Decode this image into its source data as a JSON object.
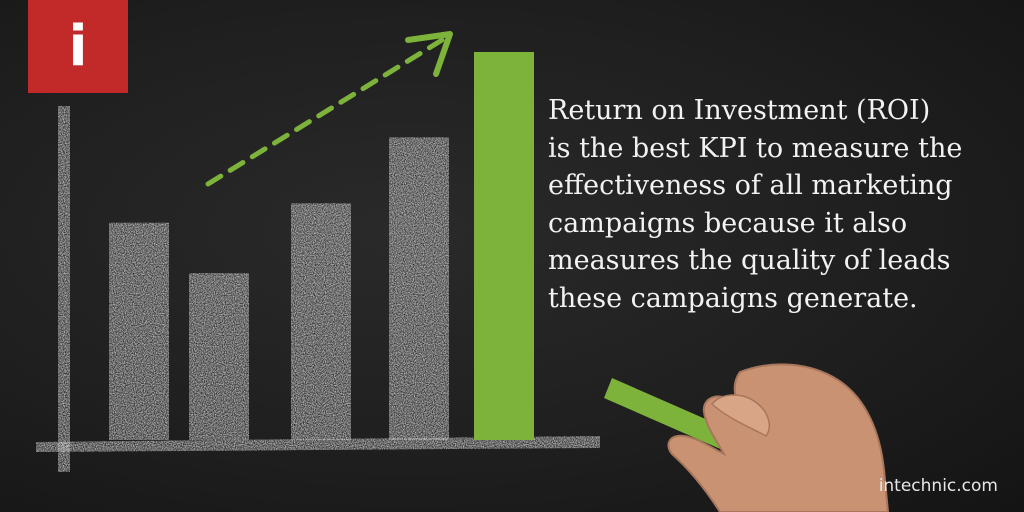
{
  "badge": {
    "icon": "info-icon",
    "glyph": "i",
    "color": "#c22a2a"
  },
  "message": {
    "lines": [
      "Return on Investment (ROI)",
      "is the best KPI to measure the",
      "effectiveness of all marketing",
      "campaigns because it also",
      "measures the quality of leads",
      "these campaigns generate."
    ]
  },
  "footer": {
    "site": "intechnic.com"
  },
  "illustration": {
    "chalk_color": "#cfcfcf",
    "highlight_color": "#7db33a",
    "bar_levels": [
      0.56,
      0.43,
      0.61,
      0.78,
      1.0
    ],
    "highlight_index": 4,
    "trend_arrow": "dashed-up-right-arrow",
    "hand_icon": "hand-holding-chalk"
  }
}
